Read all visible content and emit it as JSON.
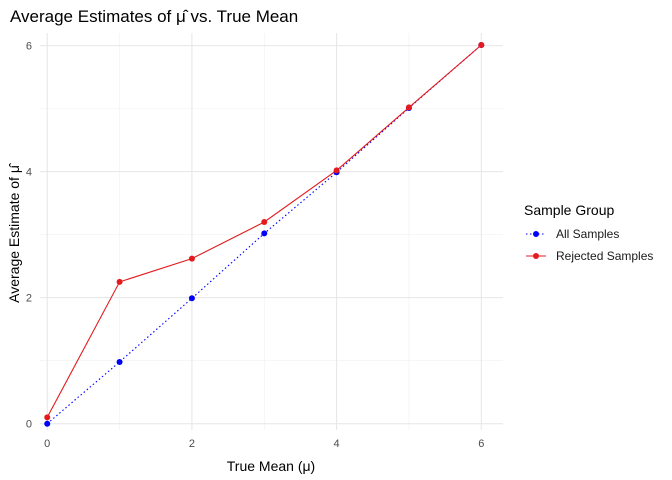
{
  "chart_data": {
    "type": "line",
    "title": "Average Estimates of μ̂ vs. True Mean",
    "xlabel": "True Mean (μ)",
    "ylabel": "Average Estimate of μ̂",
    "xlim": [
      -0.1,
      6.3
    ],
    "ylim": [
      -0.1,
      6.2
    ],
    "x_ticks": [
      0,
      2,
      4,
      6
    ],
    "y_ticks": [
      0,
      2,
      4,
      6
    ],
    "grid": true,
    "legend": {
      "title": "Sample Group",
      "placement": "right"
    },
    "x": [
      0,
      1,
      2,
      3,
      4,
      5,
      6
    ],
    "series": [
      {
        "name": "All Samples",
        "color": "#0000ff",
        "line_style": "dotted",
        "values": [
          0.0,
          0.98,
          1.99,
          3.02,
          3.99,
          5.01,
          6.01
        ]
      },
      {
        "name": "Rejected Samples",
        "color": "#e41a1c",
        "line_style": "solid",
        "values": [
          0.1,
          2.25,
          2.62,
          3.2,
          4.02,
          5.02,
          6.01
        ]
      }
    ]
  }
}
